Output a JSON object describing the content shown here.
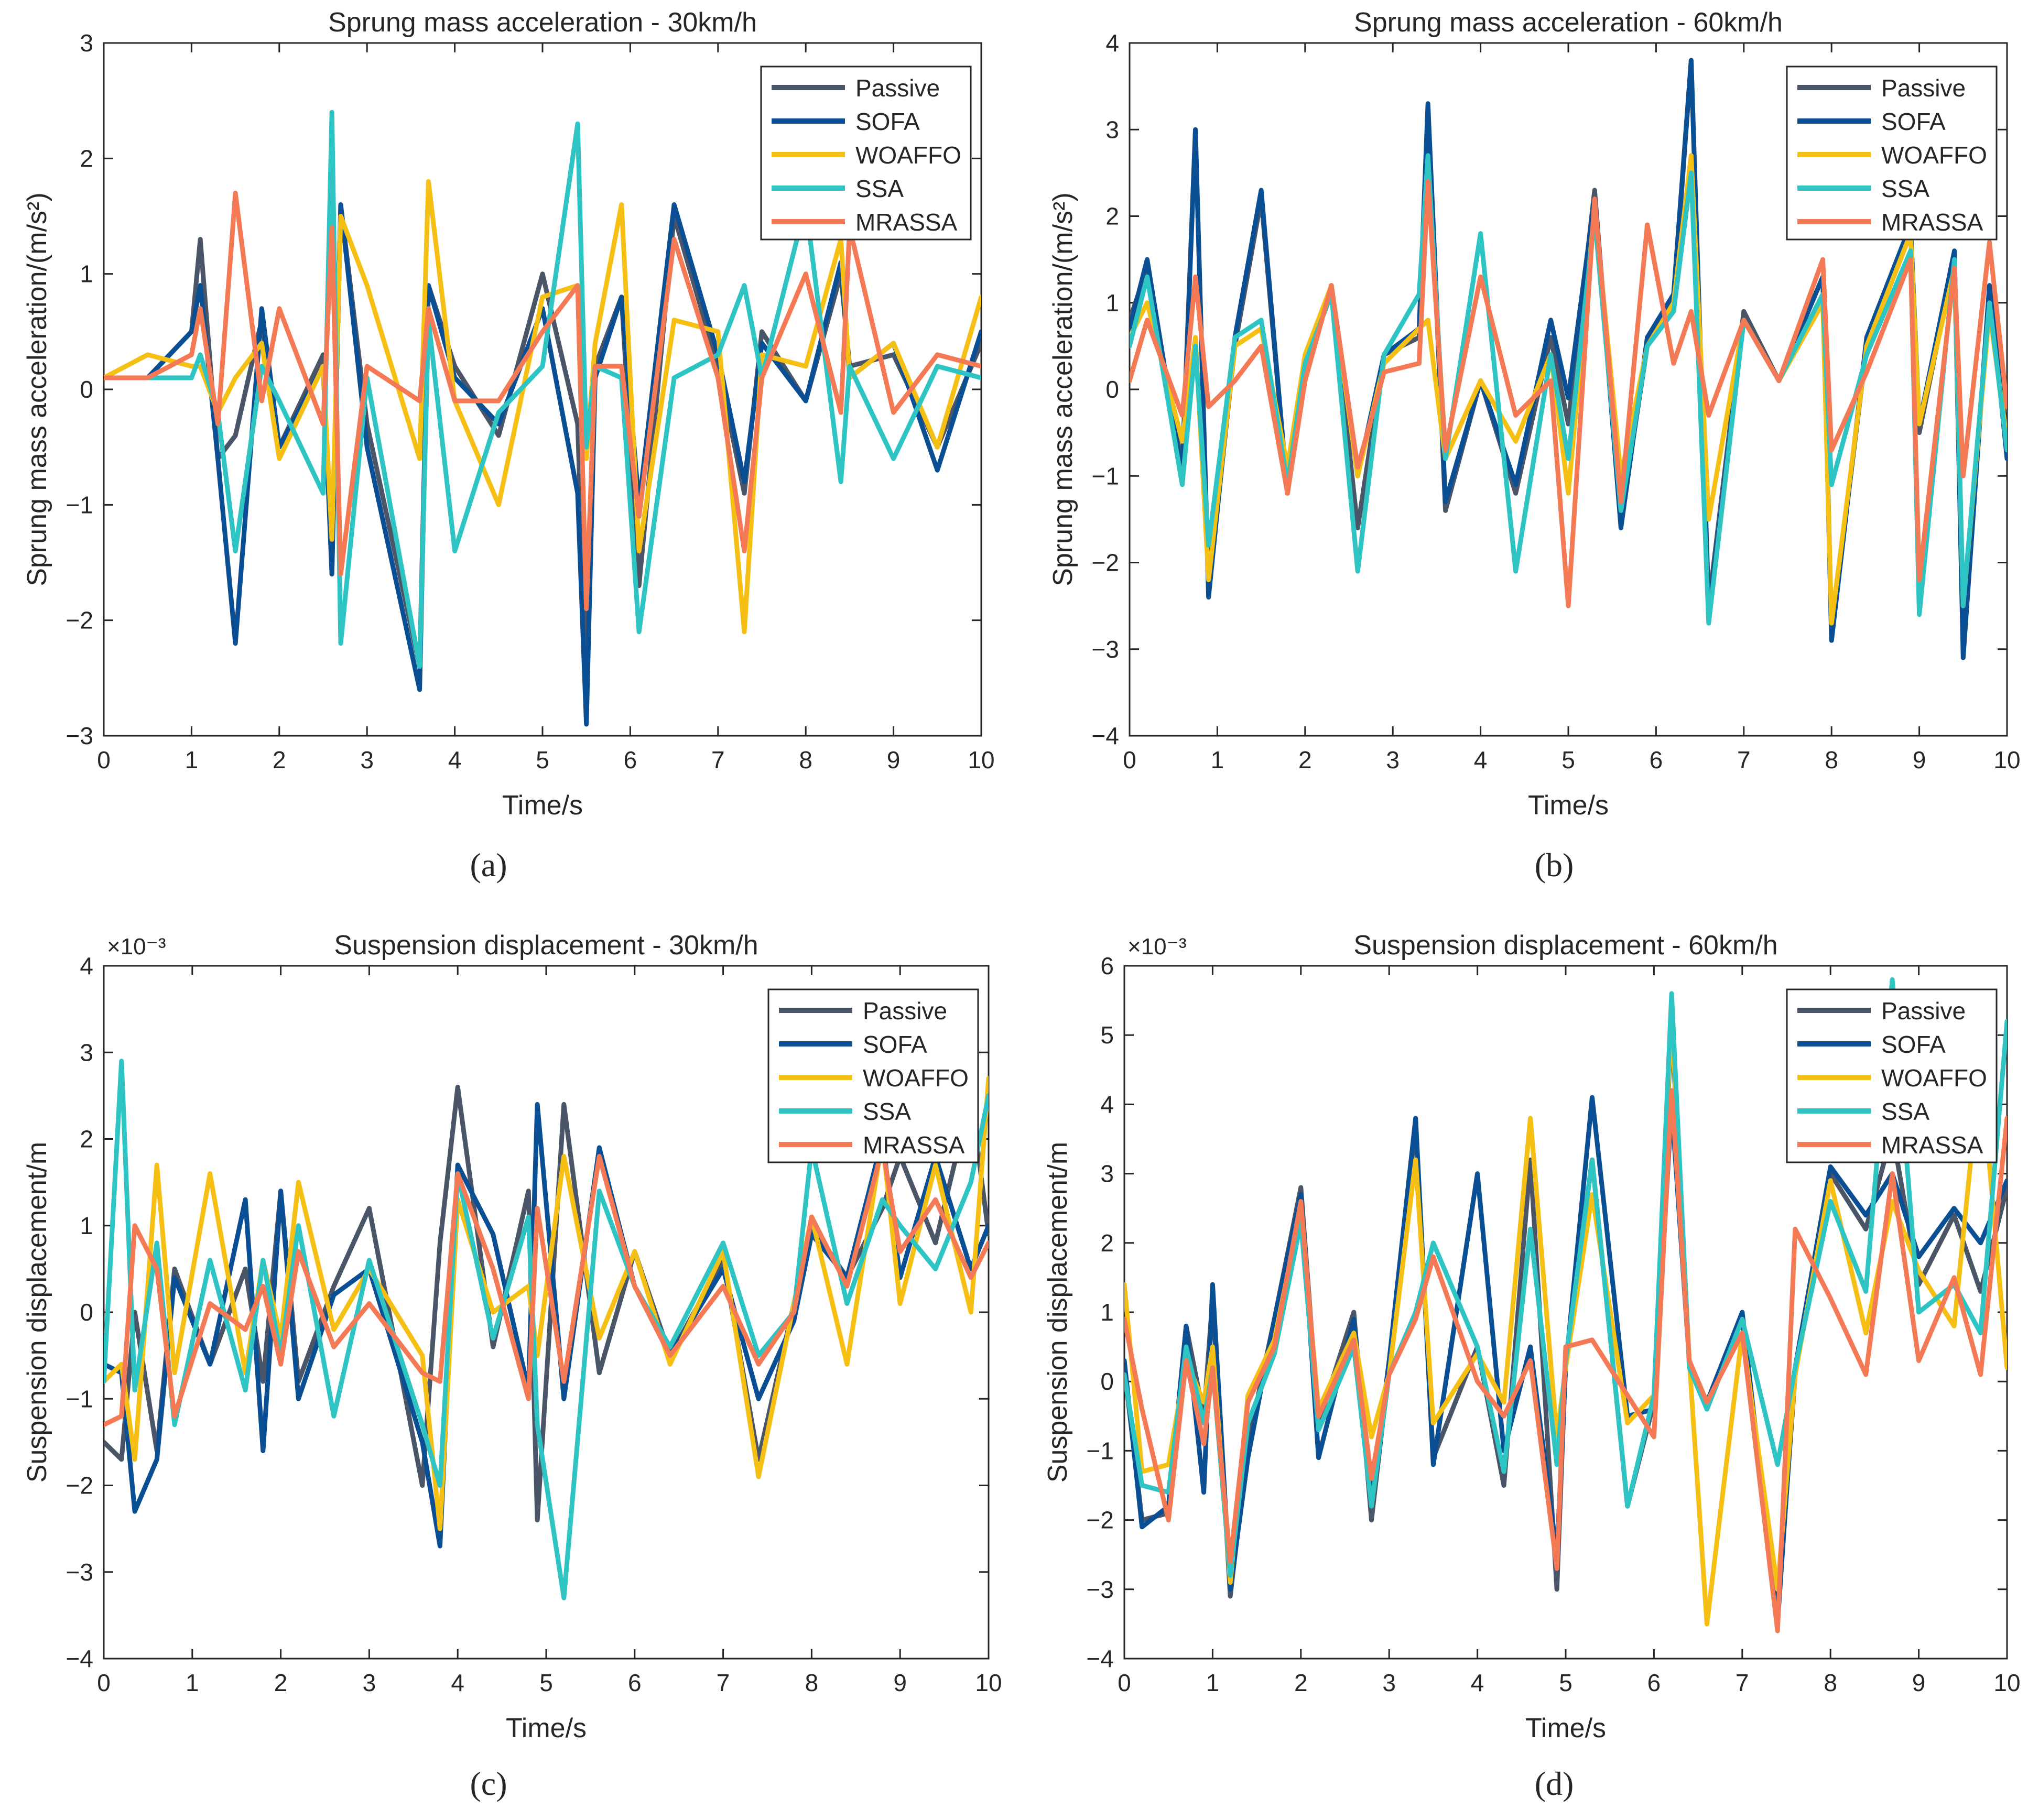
{
  "figure": {
    "panel_captions": [
      "(a)",
      "(b)",
      "(c)",
      "(d)"
    ]
  },
  "legend_colors": {
    "Passive": "#4a5568",
    "SOFA": "#0a4f94",
    "WOAFFO": "#f5bf14",
    "SSA": "#2ec4c4",
    "MRASSA": "#f47a55"
  },
  "chart_data": [
    {
      "type": "line",
      "title": "Sprung mass acceleration - 30km/h",
      "xlabel": "Time/s",
      "ylabel": "Sprung mass acceleration/(m/s²)",
      "exponent_label": "",
      "xlim": [
        0,
        10
      ],
      "ylim": [
        -3,
        3
      ],
      "xticks": [
        0,
        1,
        2,
        3,
        4,
        5,
        6,
        7,
        8,
        9,
        10
      ],
      "yticks": [
        -3,
        -2,
        -1,
        0,
        1,
        2,
        3
      ],
      "ytick_labels": [
        "−3",
        "−2",
        "−1",
        "0",
        "1",
        "2",
        "3"
      ],
      "legend_position": "top-right",
      "grid": false,
      "x": [
        0,
        0.5,
        1.0,
        1.1,
        1.3,
        1.5,
        1.8,
        2.0,
        2.5,
        2.6,
        2.7,
        3.0,
        3.6,
        3.7,
        4.0,
        4.5,
        5.0,
        5.4,
        5.5,
        5.6,
        5.9,
        6.1,
        6.5,
        7.0,
        7.3,
        7.5,
        8.0,
        8.4,
        8.5,
        9.0,
        9.5,
        10.0
      ],
      "series": [
        {
          "name": "Passive",
          "values": [
            0.1,
            0.1,
            0.5,
            1.3,
            -0.6,
            -0.4,
            0.6,
            -0.5,
            0.3,
            -1.6,
            1.6,
            -0.3,
            -2.4,
            0.9,
            0.2,
            -0.4,
            1.0,
            -0.3,
            -2.5,
            0.2,
            0.8,
            -1.7,
            1.5,
            0.2,
            -0.9,
            0.5,
            -0.1,
            1.0,
            0.2,
            0.3,
            -0.5,
            0.4
          ]
        },
        {
          "name": "SOFA",
          "values": [
            0.1,
            0.1,
            0.5,
            0.9,
            -0.6,
            -2.2,
            0.7,
            -0.5,
            0.2,
            -1.6,
            1.6,
            -0.5,
            -2.6,
            0.9,
            0.1,
            -0.3,
            0.7,
            -0.9,
            -2.9,
            0.1,
            0.8,
            -1.0,
            1.6,
            0.3,
            -0.8,
            0.4,
            -0.1,
            1.1,
            0.1,
            0.4,
            -0.7,
            0.5
          ]
        },
        {
          "name": "WOAFFO",
          "values": [
            0.1,
            0.3,
            0.2,
            0.2,
            -0.2,
            0.1,
            0.4,
            -0.6,
            0.2,
            -1.3,
            1.5,
            0.9,
            -0.6,
            1.8,
            -0.1,
            -1.0,
            0.8,
            0.9,
            -0.6,
            0.4,
            1.6,
            -1.4,
            0.6,
            0.5,
            -2.1,
            0.3,
            0.2,
            1.3,
            0.1,
            0.4,
            -0.5,
            0.8
          ]
        },
        {
          "name": "SSA",
          "values": [
            0.1,
            0.1,
            0.1,
            0.3,
            -0.2,
            -1.4,
            0.2,
            -0.1,
            -0.9,
            2.4,
            -2.2,
            0.1,
            -2.4,
            0.6,
            -1.4,
            -0.2,
            0.2,
            2.3,
            -0.5,
            0.2,
            0.1,
            -2.1,
            0.1,
            0.3,
            0.9,
            0.1,
            1.6,
            -0.8,
            0.2,
            -0.6,
            0.2,
            0.1
          ]
        },
        {
          "name": "MRASSA",
          "values": [
            0.1,
            0.1,
            0.3,
            0.7,
            -0.3,
            1.7,
            -0.1,
            0.7,
            -0.3,
            1.4,
            -1.6,
            0.2,
            -0.1,
            0.7,
            -0.1,
            -0.1,
            0.5,
            0.9,
            -1.9,
            0.2,
            0.2,
            -1.1,
            1.3,
            0.1,
            -1.4,
            0.1,
            1.0,
            -0.2,
            1.4,
            -0.2,
            0.3,
            0.2
          ]
        }
      ]
    },
    {
      "type": "line",
      "title": "Sprung mass acceleration - 60km/h",
      "xlabel": "Time/s",
      "ylabel": "Sprung mass acceleration/(m/s²)",
      "exponent_label": "",
      "xlim": [
        0,
        10
      ],
      "ylim": [
        -4,
        4
      ],
      "xticks": [
        0,
        1,
        2,
        3,
        4,
        5,
        6,
        7,
        8,
        9,
        10
      ],
      "yticks": [
        -4,
        -3,
        -2,
        -1,
        0,
        1,
        2,
        3,
        4
      ],
      "ytick_labels": [
        "−4",
        "−3",
        "−2",
        "−1",
        "0",
        "1",
        "2",
        "3",
        "4"
      ],
      "legend_position": "top-right",
      "grid": false,
      "x": [
        0,
        0.2,
        0.6,
        0.75,
        0.9,
        1.2,
        1.5,
        1.8,
        2.0,
        2.3,
        2.6,
        2.9,
        3.3,
        3.4,
        3.6,
        4.0,
        4.4,
        4.8,
        5.0,
        5.3,
        5.6,
        5.9,
        6.2,
        6.4,
        6.6,
        7.0,
        7.4,
        7.9,
        8.0,
        8.4,
        8.9,
        9.0,
        9.4,
        9.5,
        9.8,
        10.0
      ],
      "series": [
        {
          "name": "Passive",
          "values": [
            0.8,
            1.4,
            -0.9,
            3.0,
            -2.3,
            0.5,
            2.2,
            -1.2,
            0.2,
            1.2,
            -1.6,
            0.4,
            0.6,
            3.2,
            -1.4,
            0.1,
            -1.2,
            0.6,
            -0.4,
            2.3,
            -1.5,
            0.5,
            1.0,
            3.8,
            -2.5,
            0.9,
            0.1,
            1.3,
            -2.8,
            0.5,
            1.8,
            -0.5,
            1.5,
            -3.0,
            1.2,
            -0.6
          ]
        },
        {
          "name": "SOFA",
          "values": [
            0.7,
            1.5,
            -1.0,
            3.0,
            -2.4,
            0.6,
            2.3,
            -1.2,
            0.3,
            1.2,
            -1.0,
            0.4,
            0.7,
            3.3,
            -1.3,
            0.1,
            -1.1,
            0.8,
            -0.1,
            2.2,
            -1.6,
            0.6,
            1.1,
            3.8,
            -2.6,
            0.8,
            0.1,
            1.3,
            -2.9,
            0.6,
            1.9,
            -0.4,
            1.6,
            -3.1,
            1.2,
            -0.8
          ]
        },
        {
          "name": "WOAFFO",
          "values": [
            0.6,
            1.0,
            -0.6,
            0.6,
            -2.2,
            0.5,
            0.7,
            -0.9,
            0.4,
            1.2,
            -1.0,
            0.3,
            0.7,
            0.8,
            -0.8,
            0.1,
            -0.6,
            0.4,
            -1.2,
            2.1,
            -1.0,
            0.5,
            1.0,
            2.7,
            -1.5,
            0.8,
            0.1,
            1.0,
            -2.7,
            0.5,
            1.8,
            -0.4,
            1.4,
            -2.5,
            0.9,
            -0.6
          ]
        },
        {
          "name": "SSA",
          "values": [
            0.5,
            1.3,
            -1.1,
            0.5,
            -1.8,
            0.6,
            0.8,
            -1.1,
            0.3,
            1.1,
            -2.1,
            0.4,
            1.1,
            2.7,
            -0.8,
            1.8,
            -2.1,
            0.4,
            -0.8,
            2.0,
            -1.4,
            0.5,
            0.9,
            2.5,
            -2.7,
            0.8,
            0.1,
            1.1,
            -1.1,
            0.4,
            1.6,
            -2.6,
            1.5,
            -2.5,
            1.0,
            -0.7
          ]
        },
        {
          "name": "MRASSA",
          "values": [
            0.1,
            0.8,
            -0.3,
            1.3,
            -0.2,
            0.1,
            0.5,
            -1.2,
            0.1,
            1.2,
            -0.9,
            0.2,
            0.3,
            2.4,
            -0.7,
            1.3,
            -0.3,
            0.1,
            -2.5,
            2.2,
            -1.3,
            1.9,
            0.3,
            0.9,
            -0.3,
            0.8,
            0.1,
            1.5,
            -0.7,
            0.2,
            1.5,
            -2.2,
            1.4,
            -1.0,
            1.7,
            -0.2
          ]
        }
      ]
    },
    {
      "type": "line",
      "title": "Suspension displacement - 30km/h",
      "xlabel": "Time/s",
      "ylabel": "Suspension displacement/m",
      "exponent_label": "×10⁻³",
      "xlim": [
        0,
        10
      ],
      "ylim": [
        -4,
        4
      ],
      "xticks": [
        0,
        1,
        2,
        3,
        4,
        5,
        6,
        7,
        8,
        9,
        10
      ],
      "yticks": [
        -4,
        -3,
        -2,
        -1,
        0,
        1,
        2,
        3,
        4
      ],
      "ytick_labels": [
        "−4",
        "−3",
        "−2",
        "−1",
        "0",
        "1",
        "2",
        "3",
        "4"
      ],
      "legend_position": "top-right",
      "grid": false,
      "x": [
        0,
        0.2,
        0.35,
        0.6,
        0.8,
        1.2,
        1.6,
        1.8,
        2.0,
        2.2,
        2.6,
        3.0,
        3.6,
        3.8,
        4.0,
        4.4,
        4.8,
        4.9,
        5.2,
        5.6,
        6.0,
        6.4,
        7.0,
        7.4,
        7.8,
        8.0,
        8.4,
        8.8,
        9.0,
        9.4,
        9.8,
        10.0
      ],
      "series": [
        {
          "name": "Passive",
          "values": [
            -1.5,
            -1.7,
            0.0,
            -1.6,
            0.5,
            -0.6,
            0.5,
            -0.8,
            1.4,
            -0.8,
            0.3,
            1.2,
            -2.0,
            0.8,
            2.6,
            -0.4,
            1.4,
            -2.4,
            2.4,
            -0.7,
            0.7,
            -0.5,
            0.6,
            -1.7,
            0.1,
            1.0,
            0.4,
            1.2,
            1.8,
            0.8,
            2.5,
            0.9
          ]
        },
        {
          "name": "SOFA",
          "values": [
            -0.6,
            -0.7,
            -2.3,
            -1.7,
            0.4,
            -0.6,
            1.3,
            -1.6,
            1.4,
            -1.0,
            0.2,
            0.5,
            -1.5,
            -2.7,
            1.7,
            0.9,
            -0.9,
            2.4,
            -1.0,
            1.9,
            0.3,
            -0.5,
            0.5,
            -1.0,
            -0.1,
            0.9,
            0.4,
            2.0,
            0.4,
            1.8,
            0.5,
            1.0
          ]
        },
        {
          "name": "WOAFFO",
          "values": [
            -0.8,
            -0.6,
            -1.7,
            1.7,
            -0.7,
            1.6,
            -0.7,
            0.6,
            -0.3,
            1.5,
            -0.2,
            0.5,
            -0.5,
            -2.5,
            1.3,
            0.0,
            0.3,
            -0.5,
            1.8,
            -0.3,
            0.7,
            -0.6,
            0.7,
            -1.9,
            0.1,
            1.1,
            -0.6,
            2.0,
            0.1,
            1.7,
            0.0,
            2.7
          ]
        },
        {
          "name": "SSA",
          "values": [
            -0.8,
            2.9,
            -0.9,
            0.8,
            -1.3,
            0.6,
            -0.9,
            0.6,
            -0.5,
            1.0,
            -1.2,
            0.6,
            -1.3,
            -2.0,
            1.6,
            -0.3,
            1.1,
            -1.3,
            -3.3,
            1.4,
            0.3,
            -0.4,
            0.8,
            -0.5,
            0.0,
            1.9,
            0.1,
            1.3,
            1.0,
            0.5,
            1.5,
            2.5
          ]
        },
        {
          "name": "MRASSA",
          "values": [
            -1.3,
            -1.2,
            1.0,
            0.5,
            -1.2,
            0.1,
            -0.2,
            0.3,
            -0.6,
            0.7,
            -0.4,
            0.1,
            -0.7,
            -0.8,
            1.6,
            0.5,
            -1.0,
            1.2,
            -0.8,
            1.8,
            0.3,
            -0.5,
            0.3,
            -0.6,
            0.0,
            1.1,
            0.3,
            1.9,
            0.7,
            1.3,
            0.4,
            0.8
          ]
        }
      ]
    },
    {
      "type": "line",
      "title": "Suspension displacement - 60km/h",
      "xlabel": "Time/s",
      "ylabel": "Suspension displacement/m",
      "exponent_label": "×10⁻³",
      "xlim": [
        0,
        10
      ],
      "ylim": [
        -4,
        6
      ],
      "xticks": [
        0,
        1,
        2,
        3,
        4,
        5,
        6,
        7,
        8,
        9,
        10
      ],
      "yticks": [
        -4,
        -3,
        -2,
        -1,
        0,
        1,
        2,
        3,
        4,
        5,
        6
      ],
      "ytick_labels": [
        "−4",
        "−3",
        "−2",
        "−1",
        "0",
        "1",
        "2",
        "3",
        "4",
        "5",
        "6"
      ],
      "legend_position": "top-right",
      "grid": false,
      "x": [
        0,
        0.2,
        0.5,
        0.7,
        0.9,
        1.0,
        1.2,
        1.4,
        1.7,
        2.0,
        2.2,
        2.6,
        2.8,
        3.0,
        3.3,
        3.5,
        4.0,
        4.3,
        4.6,
        4.9,
        5.0,
        5.3,
        5.7,
        6.0,
        6.2,
        6.4,
        6.6,
        7.0,
        7.4,
        7.6,
        8.0,
        8.4,
        8.7,
        9.0,
        9.4,
        9.7,
        10.0
      ],
      "series": [
        {
          "name": "Passive",
          "values": [
            0.2,
            -2.0,
            -1.9,
            0.8,
            -0.5,
            1.2,
            -3.1,
            -0.9,
            0.9,
            2.8,
            -0.6,
            1.0,
            -2.0,
            0.2,
            3.7,
            -1.1,
            0.5,
            -1.5,
            3.2,
            -3.0,
            0.3,
            3.2,
            -1.8,
            -0.3,
            5.2,
            0.3,
            -0.4,
            0.9,
            -3.4,
            0.1,
            3.0,
            2.2,
            3.6,
            1.4,
            2.4,
            1.3,
            2.8
          ]
        },
        {
          "name": "SOFA",
          "values": [
            0.3,
            -2.1,
            -1.8,
            0.8,
            -1.6,
            1.4,
            -3.0,
            -1.1,
            0.9,
            2.7,
            -1.1,
            0.9,
            -1.7,
            0.3,
            3.8,
            -1.2,
            3.0,
            -1.0,
            0.5,
            -2.5,
            0.2,
            4.1,
            -0.5,
            -0.4,
            4.0,
            0.3,
            -0.3,
            1.0,
            -3.5,
            0.2,
            3.1,
            2.4,
            3.0,
            1.8,
            2.5,
            2.0,
            2.9
          ]
        },
        {
          "name": "WOAFFO",
          "values": [
            1.4,
            -1.3,
            -1.2,
            0.3,
            -0.3,
            0.5,
            -2.9,
            -0.2,
            0.6,
            2.5,
            -0.4,
            0.7,
            -0.8,
            0.1,
            3.2,
            -0.6,
            0.4,
            -0.3,
            3.8,
            -0.8,
            0.2,
            2.7,
            -0.6,
            -0.2,
            5.3,
            0.3,
            -3.5,
            0.7,
            -3.0,
            0.1,
            2.9,
            0.7,
            2.6,
            1.6,
            0.8,
            4.6,
            0.2
          ]
        },
        {
          "name": "SSA",
          "values": [
            0.1,
            -1.5,
            -1.6,
            0.5,
            -0.6,
            0.2,
            -2.8,
            -0.6,
            0.4,
            2.3,
            -0.7,
            0.5,
            -1.8,
            0.1,
            1.0,
            2.0,
            0.5,
            -1.3,
            2.2,
            -1.2,
            0.3,
            3.2,
            -1.8,
            -0.2,
            5.6,
            0.2,
            -0.4,
            0.9,
            -1.2,
            0.2,
            2.6,
            1.3,
            5.8,
            1.0,
            1.4,
            0.7,
            5.2
          ]
        },
        {
          "name": "MRASSA",
          "values": [
            0.9,
            -0.4,
            -2.0,
            0.3,
            -0.9,
            0.2,
            -2.6,
            -0.3,
            0.5,
            2.6,
            -0.5,
            0.6,
            -1.4,
            0.1,
            0.9,
            1.8,
            0.0,
            -0.5,
            0.3,
            -2.7,
            0.5,
            0.6,
            -0.2,
            -0.8,
            4.2,
            0.3,
            -0.3,
            0.7,
            -3.6,
            2.2,
            1.2,
            0.1,
            3.0,
            0.3,
            1.5,
            0.1,
            3.8
          ]
        }
      ]
    }
  ]
}
